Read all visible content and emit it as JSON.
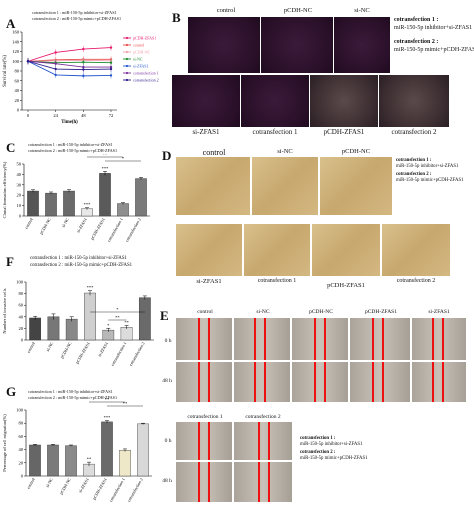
{
  "panels": {
    "A": {
      "label": "A",
      "notes": [
        "cotransfection 1 : miR-150-5p inhibitor+si-ZFAS1",
        "cotransfection 2 : miR-150-5p mimic+pCDH-ZFAS1"
      ],
      "legend": [
        "pCDH-ZFAS1",
        "control",
        "pCDH-NC",
        "si-NC",
        "si-ZFAS1",
        "cotransfection 1",
        "cotransfection 2"
      ]
    },
    "B": {
      "label": "B",
      "row1": [
        "control",
        "pCDH-NC",
        "si-NC"
      ],
      "row2": [
        "si-ZFAS1",
        "cotransfection 1",
        "pCDH-ZFAS1",
        "cotransfection 2"
      ],
      "note1_title": "cotransfection 1 :",
      "note1_value": "miR-150-5p inhibitor+si-ZFAS1",
      "note2_title": "cotransfection 2 :",
      "note2_value": "miR-150-5p mimic+pCDH-ZFAS1"
    },
    "C": {
      "label": "C",
      "notes": [
        "cotransfection 1 : miR-150-5p inhibitor+si-ZFAS1",
        "cotransfection 2 : miR-150-5p mimic+pCDH-ZFAS1"
      ],
      "sig": [
        "**",
        "*",
        "***",
        "***"
      ]
    },
    "D": {
      "label": "D",
      "row1": [
        "control",
        "si-NC",
        "pCDH-NC"
      ],
      "row2": [
        "si-ZFAS1",
        "cotransfection 1",
        "pCDH-ZFAS1",
        "cotransfection 2"
      ],
      "note1_title": "cotransfection 1 :",
      "note1_value": "miR-150-5p inhibitor+si-ZFAS1",
      "note2_title": "cotransfection 2 :",
      "note2_value": "miR-150-5p mimic+pCDH-ZFAS1"
    },
    "E": {
      "label": "E",
      "row_top": [
        "control",
        "si-NC",
        "pCDH-NC",
        "pCDH-ZFAS1",
        "si-ZFAS1"
      ],
      "row_bottom": [
        "cotransfection 1",
        "cotransfection 2"
      ],
      "time_0": "0 h",
      "time_48": "48 h",
      "note1_title": "cotransfection 1 :",
      "note1_value": "miR-150-5p inhibitor+si-ZFAS1",
      "note2_title": "cotransfection 2 :",
      "note2_value": "miR-150-5p mimic+pCDH-ZFAS1"
    },
    "F": {
      "label": "F",
      "note1": "cotransfection 1 : miR-150-5p inhibitor+si-ZFAS1",
      "note2": "cotransfection 2 : miR-150-5p mimic+pCDH-ZFAS1",
      "sig": [
        "***",
        "**",
        "*",
        "*",
        "**"
      ]
    },
    "G": {
      "label": "G",
      "notes": [
        "cotransfection 1 : miR-150-5p inhibitor+si-ZFAS1",
        "cotransfection 2 : miR-150-5p mimic+pCDH-ZFAS1"
      ],
      "sig": [
        "**",
        "**",
        "***",
        "**"
      ]
    }
  },
  "chart_data": [
    {
      "panel": "A",
      "type": "line",
      "ylabel": "Survival rate(%)",
      "xlabel": "Time(h)",
      "x": [
        0,
        24,
        48,
        72
      ],
      "ylim": [
        0,
        160
      ],
      "yticks": [
        0,
        20,
        40,
        60,
        80,
        100,
        120,
        140,
        160
      ],
      "series": [
        {
          "name": "pCDH-ZFAS1",
          "color": "#e8196b",
          "values": [
            100,
            118,
            125,
            128
          ]
        },
        {
          "name": "control",
          "color": "#e84a4a",
          "values": [
            100,
            103,
            104,
            104
          ]
        },
        {
          "name": "pCDH-NC",
          "color": "#f2a0b0",
          "values": [
            100,
            101,
            102,
            101
          ]
        },
        {
          "name": "si-NC",
          "color": "#1a8a2a",
          "values": [
            100,
            97,
            98,
            97
          ]
        },
        {
          "name": "si-ZFAS1",
          "color": "#2255cc",
          "values": [
            100,
            72,
            70,
            71
          ]
        },
        {
          "name": "cotransfection 1",
          "color": "#7a2f9a",
          "values": [
            100,
            95,
            88,
            88
          ]
        },
        {
          "name": "cotransfection 2",
          "color": "#2a1a8a",
          "values": [
            100,
            84,
            83,
            84
          ]
        }
      ]
    },
    {
      "panel": "C",
      "type": "bar",
      "ylabel": "Clonal formation efficiency(%)",
      "ylim": [
        0,
        50
      ],
      "yticks": [
        0,
        10,
        20,
        30,
        40,
        50
      ],
      "categories": [
        "control",
        "pCDH-NC",
        "si-NC",
        "si-ZFAS1",
        "pCDH-ZFAS1",
        "cotransfection 1",
        "cotransfection 2"
      ],
      "values": [
        24,
        22,
        24,
        7,
        41,
        12,
        36
      ],
      "errors": [
        1.2,
        1.1,
        1.3,
        1,
        2,
        1,
        1.2
      ]
    },
    {
      "panel": "F",
      "type": "bar",
      "ylabel": "Number of invasive cells",
      "ylim": [
        0,
        100
      ],
      "yticks": [
        0,
        20,
        40,
        60,
        80,
        100
      ],
      "categories": [
        "control",
        "si-NC",
        "pCDH-NC",
        "pCDH-ZFAS1",
        "si-ZFAS1",
        "cotransfection 1",
        "cotransfection 2"
      ],
      "values": [
        38,
        40,
        36,
        81,
        17,
        22,
        73
      ],
      "errors": [
        3,
        5,
        4,
        4,
        3,
        3,
        3
      ]
    },
    {
      "panel": "G",
      "type": "bar",
      "ylabel": "Percentage of cell migration(%)",
      "ylim": [
        0,
        100
      ],
      "yticks": [
        0,
        20,
        40,
        60,
        80,
        100
      ],
      "categories": [
        "control",
        "si-NC",
        "pCDH-NC",
        "si-ZFAS1",
        "pCDH-ZFAS1",
        "cotransfection 1",
        "cotransfection 2"
      ],
      "values": [
        47,
        47,
        46,
        18,
        82,
        39,
        79
      ],
      "errors": [
        1,
        1,
        1,
        3,
        2,
        2,
        1
      ]
    }
  ]
}
